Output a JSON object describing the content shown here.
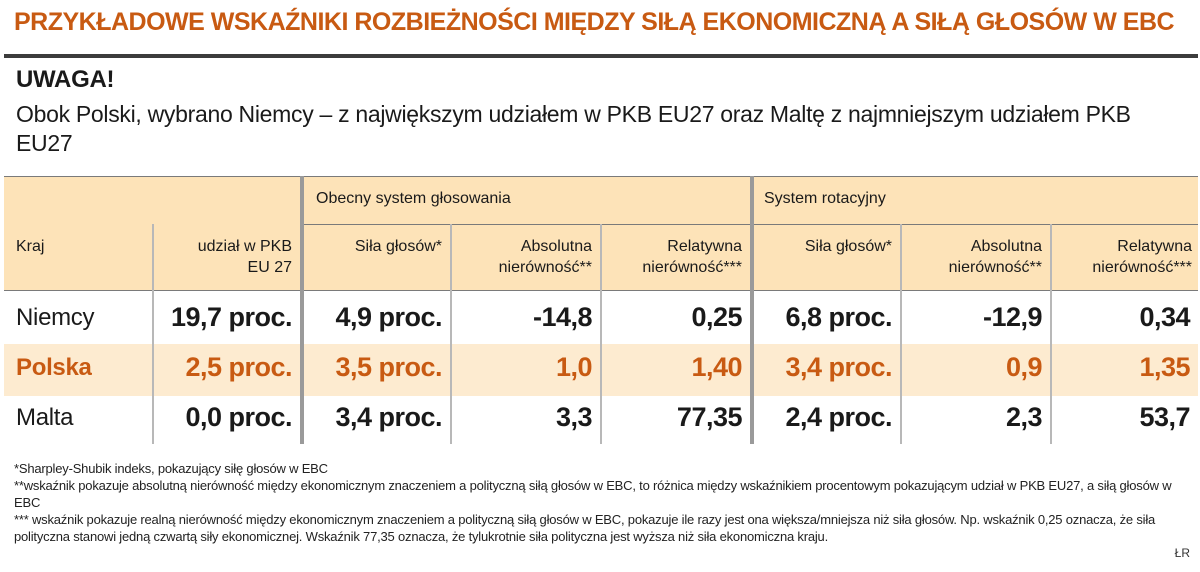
{
  "title": "PRZYKŁADOWE WSKAŹNIKI ROZBIEŻNOŚCI MIĘDZY SIŁĄ EKONOMICZNĄ A SIŁĄ GŁOSÓW W EBC",
  "note": {
    "heading": "UWAGA!",
    "text": "Obok Polski, wybrano Niemcy – z największym udziałem w PKB EU27 oraz Maltę z najmniejszym udziałem PKB EU27"
  },
  "table": {
    "groups": {
      "current": "Obecny system głosowania",
      "rotation": "System rotacyjny"
    },
    "headers": {
      "country": "Kraj",
      "gdp_share": "udział w PKB EU 27",
      "current_votes": "Siła głosów*",
      "current_abs": "Absolutna nierówność**",
      "current_rel": "Relatywna nierówność***",
      "rot_votes": "Siła głosów*",
      "rot_abs": "Absolutna nierówność**",
      "rot_rel": "Relatywna nierówność***"
    },
    "rows": [
      {
        "country": "Niemcy",
        "gdp_share": "19,7 proc.",
        "current_votes": "4,9 proc.",
        "current_abs": "-14,8",
        "current_rel": "0,25",
        "rot_votes": "6,8 proc.",
        "rot_abs": "-12,9",
        "rot_rel": "0,34"
      },
      {
        "country": "Polska",
        "gdp_share": "2,5 proc.",
        "current_votes": "3,5 proc.",
        "current_abs": "1,0",
        "current_rel": "1,40",
        "rot_votes": "3,4 proc.",
        "rot_abs": "0,9",
        "rot_rel": "1,35"
      },
      {
        "country": "Malta",
        "gdp_share": "0,0 proc.",
        "current_votes": "3,4 proc.",
        "current_abs": "3,3",
        "current_rel": "77,35",
        "rot_votes": "2,4 proc.",
        "rot_abs": "2,3",
        "rot_rel": "53,7"
      }
    ]
  },
  "footnotes": [
    "*Sharpley-Shubik indeks, pokazujący siłę głosów w EBC",
    "**wskaźnik pokazuje absolutną nierówność między ekonomicznym znaczeniem a polityczną siłą głosów w EBC, to różnica między wskaźnikiem procentowym pokazującym udział w PKB EU27, a siłą głosów w EBC",
    "*** wskaźnik pokazuje realną nierówność między ekonomicznym znaczeniem a polityczną siłą głosów w EBC, pokazuje ile razy jest ona większa/mniejsza niż siła głosów. Np. wskaźnik 0,25 oznacza, że siła polityczna stanowi jedną czwartą siły ekonomicznej. Wskaźnik 77,35 oznacza, że tylukrotnie siła polityczna jest wyższa niż siła ekonomiczna kraju."
  ],
  "credit": "ŁR",
  "colors": {
    "accent": "#c85a12",
    "header_bg": "#fde3b8",
    "highlight_row_bg": "#fdebd0"
  }
}
